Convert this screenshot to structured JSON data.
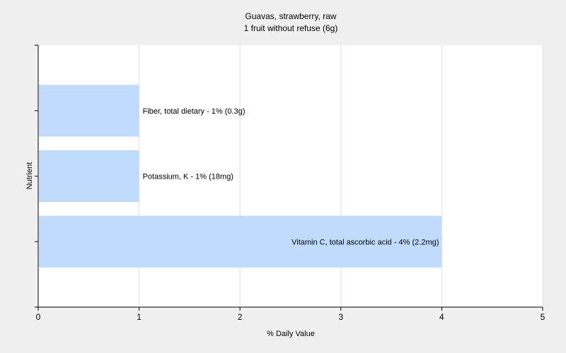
{
  "chart_data": {
    "type": "bar",
    "orientation": "horizontal",
    "title": "Guavas, strawberry, raw",
    "subtitle": "1 fruit without refuse (6g)",
    "xlabel": "% Daily Value",
    "ylabel": "Nutrient",
    "xlim": [
      0,
      5
    ],
    "xticks": [
      "0",
      "1",
      "2",
      "3",
      "4",
      "5"
    ],
    "grid": true,
    "bar_color": "#bfdcff",
    "bars": [
      {
        "name": "Fiber, total dietary",
        "value": 1,
        "label": "Fiber, total dietary - 1% (0.3g)"
      },
      {
        "name": "Potassium, K",
        "value": 1,
        "label": "Potassium, K - 1% (18mg)"
      },
      {
        "name": "Vitamin C, total ascorbic acid",
        "value": 4,
        "label": "Vitamin C, total ascorbic acid - 4% (2.2mg)"
      }
    ]
  }
}
